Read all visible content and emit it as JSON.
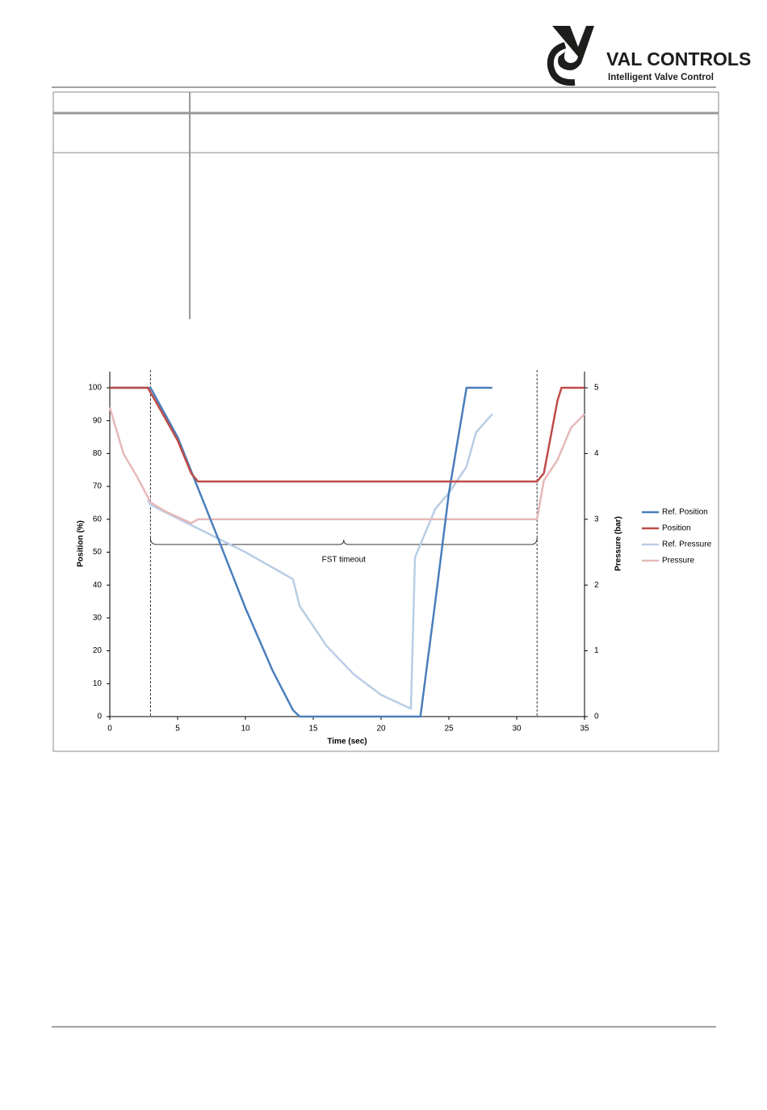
{
  "header": {
    "brand": "VAL CONTROLS",
    "tagline": "Intelligent Valve Control"
  },
  "chart_data": {
    "type": "line",
    "xlabel": "Time (sec)",
    "ylabel": "Position (%)",
    "y2label": "Pressure (bar)",
    "xlim": [
      0,
      35
    ],
    "xticks": [
      0,
      5,
      10,
      15,
      20,
      25,
      30,
      35
    ],
    "ylim": [
      0,
      100
    ],
    "yticks": [
      0,
      10,
      20,
      30,
      40,
      50,
      60,
      70,
      80,
      90,
      100
    ],
    "y2lim": [
      0,
      5
    ],
    "y2ticks": [
      0,
      1,
      2,
      3,
      4,
      5
    ],
    "legend": "right",
    "vlines": [
      3,
      31.5
    ],
    "annotation": "FST timeout",
    "series": [
      {
        "name": "Ref. Position",
        "color": "#4a7ebb",
        "x": [
          0,
          3,
          5,
          8,
          10,
          12,
          13.5,
          14,
          22.9,
          24,
          25,
          26.3,
          28.2
        ],
        "values": [
          100,
          100,
          85,
          54,
          33,
          14,
          2,
          0,
          0,
          35,
          68,
          100,
          100
        ]
      },
      {
        "name": "Position",
        "color": "#be4b48",
        "x": [
          0,
          2.8,
          3.5,
          5,
          6,
          6.5,
          31.5,
          32,
          33,
          33.3,
          35
        ],
        "values": [
          100,
          100,
          95,
          84,
          74,
          71.5,
          71.5,
          74,
          96,
          100,
          100
        ]
      },
      {
        "name": "Ref. Pressure",
        "color": "#b9cde5",
        "axis": "y2",
        "x": [
          2.8,
          3,
          10,
          13.5,
          14,
          16,
          18,
          20,
          22.2,
          22.5,
          24,
          25,
          26.3,
          27,
          28.2
        ],
        "values": [
          3.3,
          3.22,
          2.5,
          2.09,
          1.68,
          1.07,
          0.64,
          0.33,
          0.12,
          2.42,
          3.16,
          3.4,
          3.8,
          4.32,
          4.6
        ]
      },
      {
        "name": "Pressure",
        "color": "#e6b9b8",
        "axis": "y2",
        "x": [
          0,
          1,
          2,
          3,
          4,
          6,
          6.5,
          7,
          31.5,
          32,
          33,
          34,
          35
        ],
        "values": [
          4.7,
          4.0,
          3.65,
          3.26,
          3.13,
          2.94,
          3.0,
          3.0,
          3.0,
          3.59,
          3.9,
          4.39,
          4.6
        ]
      }
    ]
  }
}
